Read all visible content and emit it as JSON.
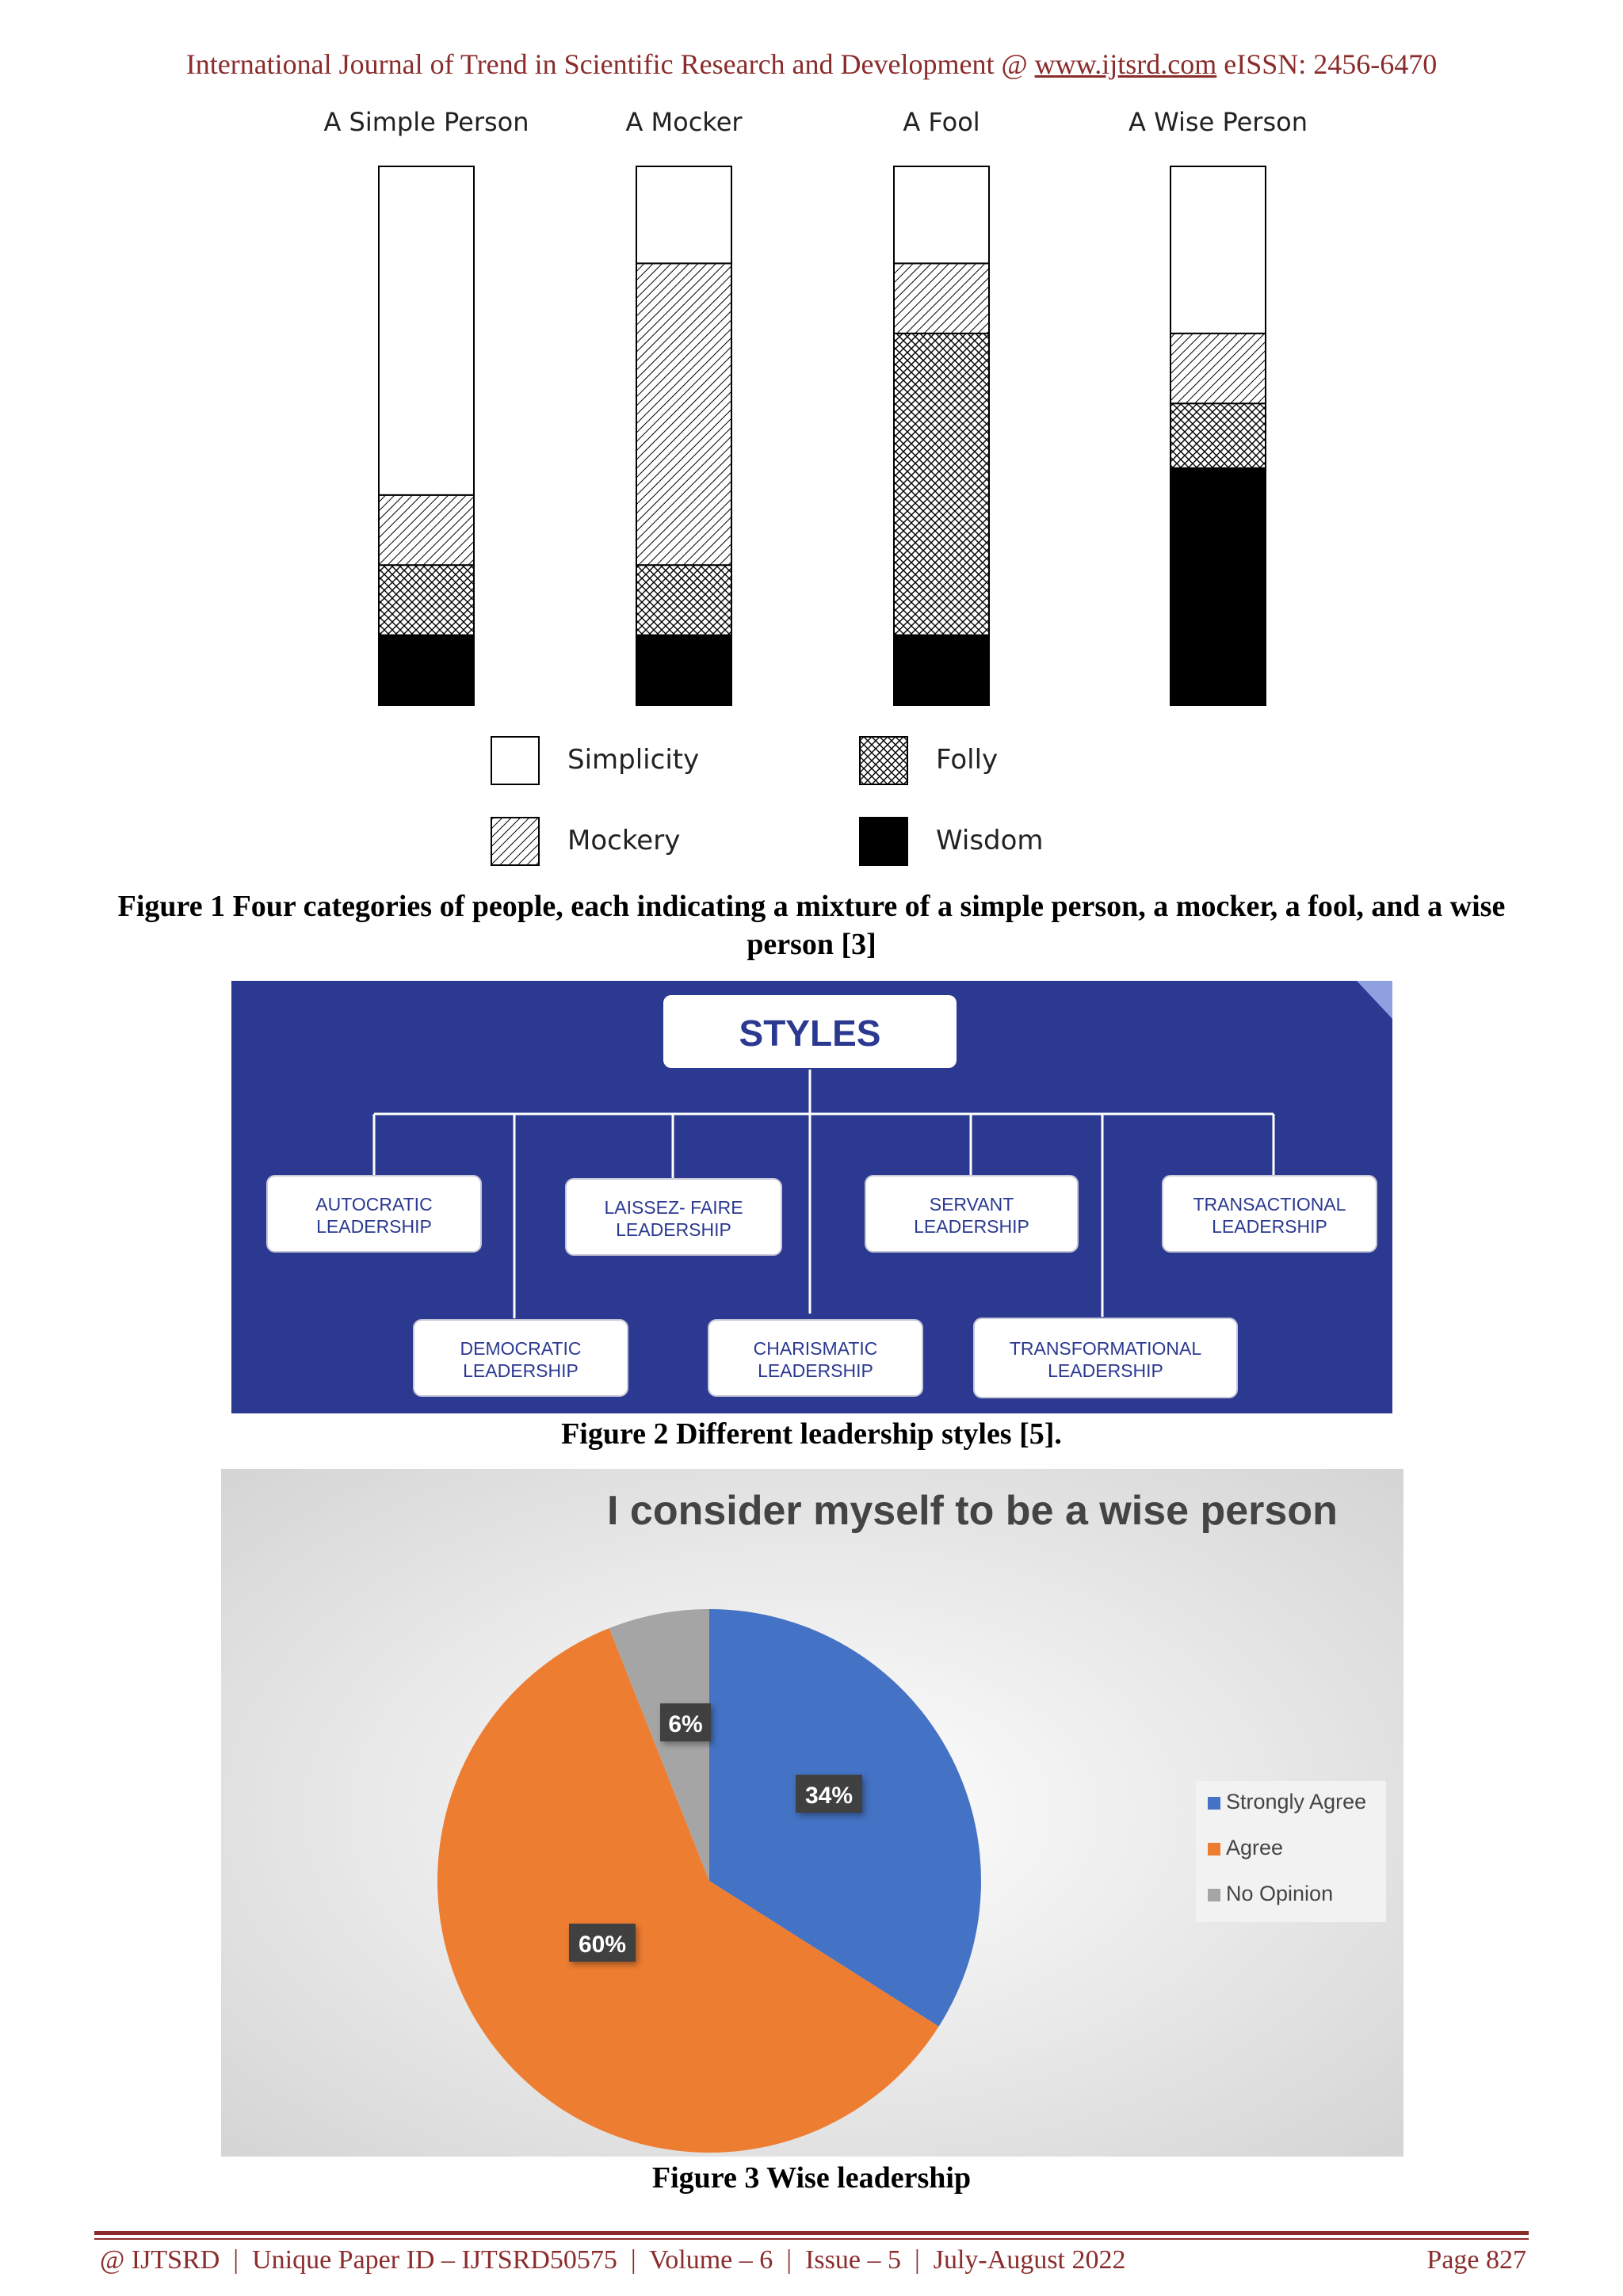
{
  "header": {
    "prefix": "International Journal of Trend in Scientific Research and Development @ ",
    "link": "www.ijtsrd.com",
    "suffix": " eISSN: 2456-6470"
  },
  "figure1": {
    "caption": "Figure 1 Four categories of people, each indicating a mixture of a simple person, a mocker, a fool, and a wise person [3]",
    "chart_data": {
      "type": "bar",
      "stacked": true,
      "categories": [
        "A Simple Person",
        "A Mocker",
        "A Fool",
        "A Wise Person"
      ],
      "series": [
        {
          "name": "Wisdom",
          "pattern": "solid-black",
          "values": [
            13,
            13,
            13,
            44
          ]
        },
        {
          "name": "Folly",
          "pattern": "crosshatch",
          "values": [
            13,
            13,
            56,
            12
          ]
        },
        {
          "name": "Mockery",
          "pattern": "diagonal-hatch",
          "values": [
            13,
            56,
            13,
            13
          ]
        },
        {
          "name": "Simplicity",
          "pattern": "white",
          "values": [
            61,
            18,
            18,
            31
          ]
        }
      ],
      "legend_order": [
        "Simplicity",
        "Folly",
        "Mockery",
        "Wisdom"
      ],
      "title": "",
      "xlabel": "",
      "ylabel": ""
    }
  },
  "figure2": {
    "caption": "Figure 2 Different leadership styles [5].",
    "background": "#2b3990",
    "root": "STYLES",
    "top_row": [
      {
        "line1": "AUTOCRATIC",
        "line2": "LEADERSHIP"
      },
      {
        "line1": "LAISSEZ- FAIRE",
        "line2": "LEADERSHIP"
      },
      {
        "line1": "SERVANT",
        "line2": "LEADERSHIP"
      },
      {
        "line1": "TRANSACTIONAL",
        "line2": "LEADERSHIP"
      }
    ],
    "bottom_row": [
      {
        "line1": "DEMOCRATIC",
        "line2": "LEADERSHIP"
      },
      {
        "line1": "CHARISMATIC",
        "line2": "LEADERSHIP"
      },
      {
        "line1": "TRANSFORMATIONAL",
        "line2": "LEADERSHIP"
      }
    ]
  },
  "figure3": {
    "caption": "Figure 3 Wise leadership",
    "chart_data": {
      "type": "pie",
      "title": "I consider myself to be a wise person",
      "slices": [
        {
          "name": "Strongly Agree",
          "value": 34,
          "label": "34%",
          "color": "#4472c4"
        },
        {
          "name": "Agree",
          "value": 60,
          "label": "60%",
          "color": "#ed7d31"
        },
        {
          "name": "No Opinion",
          "value": 6,
          "label": "6%",
          "color": "#a5a5a5"
        }
      ],
      "legend_position": "right"
    }
  },
  "footer": {
    "text": "@ IJTSRD  |  Unique Paper ID – IJTSRD50575  |  Volume – 6  |  Issue – 5  |  July-August 2022",
    "page": "Page 827"
  }
}
